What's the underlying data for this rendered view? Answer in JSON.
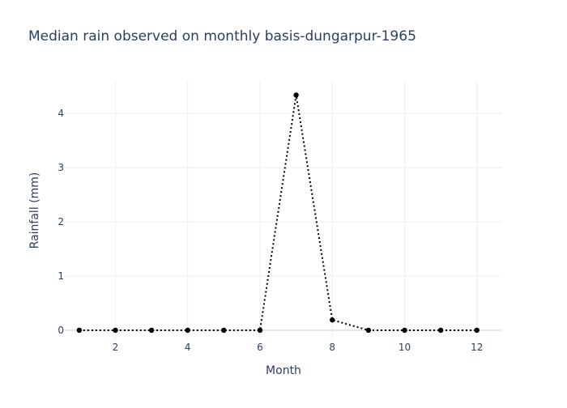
{
  "chart_data": {
    "type": "line",
    "title": "Median rain observed on monthly basis-dungarpur-1965",
    "xlabel": "Month",
    "ylabel": "Rainfall (mm)",
    "x": [
      1,
      2,
      3,
      4,
      5,
      6,
      7,
      8,
      9,
      10,
      11,
      12
    ],
    "y": [
      0,
      0,
      0,
      0,
      0,
      0,
      4.34,
      0.19,
      0,
      0,
      0,
      0
    ],
    "xlim": [
      0.6,
      12.7
    ],
    "ylim": [
      -0.18,
      4.6
    ],
    "xticks": [
      2,
      4,
      6,
      8,
      10,
      12
    ],
    "yticks": [
      0,
      1,
      2,
      3,
      4
    ],
    "grid": true,
    "line_style": "dotted",
    "colors": {
      "line": "#000000",
      "marker": "#000000",
      "grid": "#eeeeee",
      "zero_line": "#e6e6e6",
      "tick_text": "#2a3f5f",
      "title_text": "#2a3f5f"
    }
  }
}
